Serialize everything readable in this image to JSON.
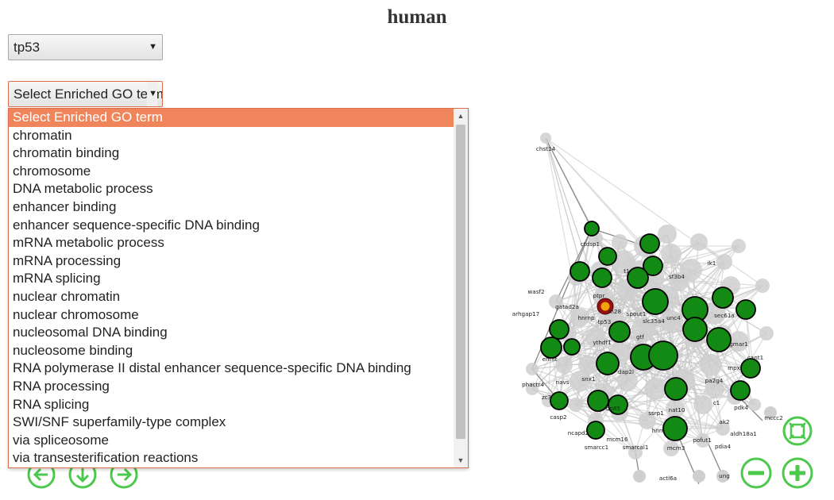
{
  "title": "human",
  "gene_select": {
    "value": "tp53"
  },
  "go_select": {
    "value": "Select Enriched GO term",
    "options": [
      "Select Enriched GO term",
      "chromatin",
      "chromatin binding",
      "chromosome",
      "DNA metabolic process",
      "enhancer binding",
      "enhancer sequence-specific DNA binding",
      "mRNA metabolic process",
      "mRNA processing",
      "mRNA splicing",
      "nuclear chromatin",
      "nuclear chromosome",
      "nucleosomal DNA binding",
      "nucleosome binding",
      "RNA polymerase II distal enhancer sequence-specific DNA binding",
      "RNA processing",
      "RNA splicing",
      "SWI/SNF superfamily-type complex",
      "via spliceosome",
      "via transesterification reactions"
    ]
  },
  "graph": {
    "labels": {
      "chst14": "chst14",
      "ctdsp1": "ctdsp1",
      "sf3b4": "sf3b4",
      "wasf2": "wasf2",
      "gatad2a": "gatad2a",
      "arhgap17": "arhgap17",
      "ptpr": "ptpr",
      "m28": "m28",
      "hnrnp": "hnrnp",
      "tp53": "tp53",
      "spout1": "spout1",
      "slc35a4": "slc35a4",
      "unc4": "unc4",
      "sec61a": "sec61a",
      "gtf": "gtf",
      "ythdf1": "ythdf1",
      "ehmt": "ehmt",
      "gmar1": "gmar1",
      "phactr4": "phactr4",
      "navs": "navs",
      "snx1": "snx1",
      "zc3": "zc3",
      "casp2": "casp2",
      "ncapd2": "ncapd2",
      "smarcc1": "smarcc1",
      "mcm2_16": "mcm16",
      "smarcal1": "smarcal1",
      "mcm3": "mcm3",
      "nat10": "nat10",
      "ssrp1": "ssrp1",
      "pa2g4": "pa2g4",
      "pdk4": "pdk4",
      "pofut1": "pofut1",
      "pdia4": "pdia4",
      "aldh18a1": "aldh18a1",
      "mccc2": "mccc2",
      "actl6a": "actl6a",
      "ung": "ung",
      "dap2l": "dap2l",
      "mpx": "mpx",
      "cant1": "cant1",
      "hnrn": "hnrn",
      "dp85": "dp85",
      "ak2": "ak2",
      "t1": "t1",
      "c1": "c1",
      "ik1": "ik1"
    },
    "colors": {
      "enriched": "#138a13",
      "other": "#cfcfcf",
      "query": "#f0a30a",
      "query_ring": "#9b1111",
      "control": "#4cc94c"
    }
  },
  "controls": {
    "fit": "fit-icon",
    "zoom_out": "zoom-out-icon",
    "zoom_in": "zoom-in-icon",
    "pan_left": "pan-left-icon",
    "pan_down": "pan-down-icon",
    "pan_right": "pan-right-icon"
  }
}
